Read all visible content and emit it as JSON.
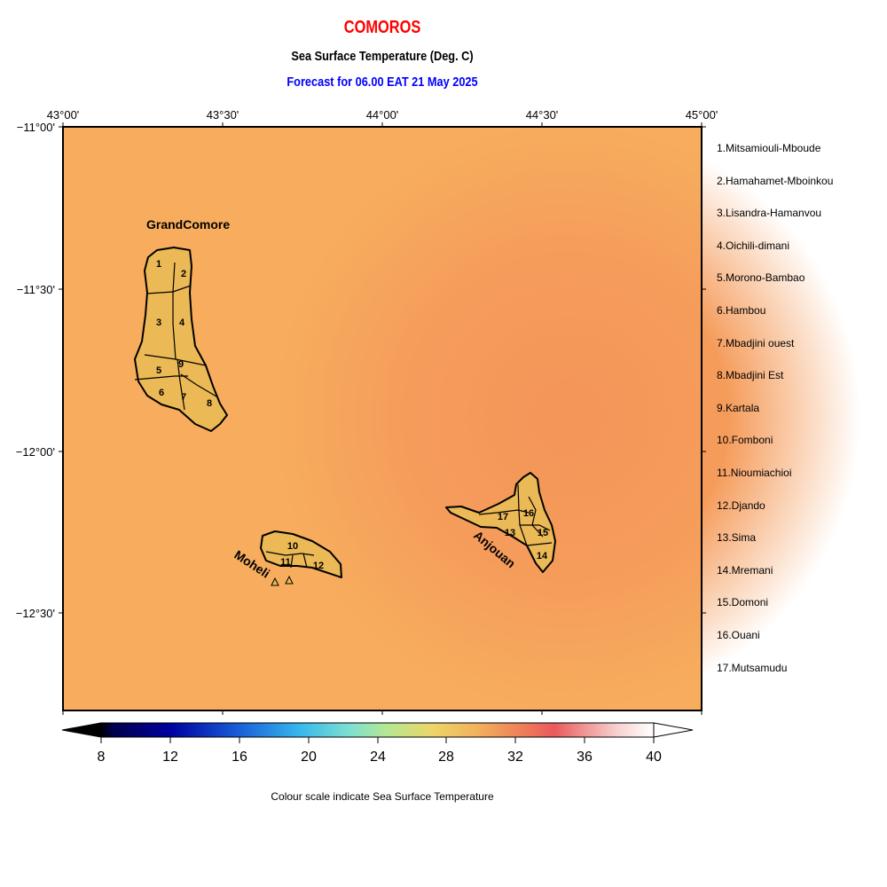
{
  "title": "COMOROS",
  "subtitle": "Sea Surface Temperature (Deg. C)",
  "forecast": "Forecast for  06.00 EAT 21 May 2025",
  "longitude_ticks": [
    "43°00'",
    "43°30'",
    "44°00'",
    "44°30'",
    "45°00'"
  ],
  "latitude_ticks": [
    "−11°00'",
    "−11°30'",
    "−12°00'",
    "−12°30'"
  ],
  "islands": {
    "grand_comore": "GrandComore",
    "moheli": "Moheli",
    "anjouan": "Anjouan"
  },
  "region_numbers": [
    "1",
    "2",
    "3",
    "4",
    "5",
    "6",
    "7",
    "8",
    "9",
    "10",
    "11",
    "12",
    "13",
    "14",
    "15",
    "16",
    "17"
  ],
  "legend_items": [
    "1.Mitsamiouli-Mboude",
    "2.Hamahamet-Mboinkou",
    "3.Lisandra-Hamanvou",
    "4.Oichili-dimani",
    "5.Morono-Bambao",
    "6.Hambou",
    "7.Mbadjini ouest",
    "8.Mbadjini Est",
    "9.Kartala",
    "10.Fomboni",
    "11.Nioumiachioi",
    "12.Djando",
    "13.Sima",
    "14.Mremani",
    "15.Domoni",
    "16.Ouani",
    "17.Mutsamudu"
  ],
  "colorbar": {
    "ticks": [
      "8",
      "12",
      "16",
      "20",
      "24",
      "28",
      "32",
      "36",
      "40"
    ],
    "min": 8,
    "max": 40,
    "caption": "Colour scale indicate Sea Surface Temperature"
  },
  "colors": {
    "sea_warm": "#f7ad5d",
    "sea_hot": "#f4965a",
    "land": "#ebb955",
    "title": "#ff0000",
    "forecast": "#0000ff"
  }
}
